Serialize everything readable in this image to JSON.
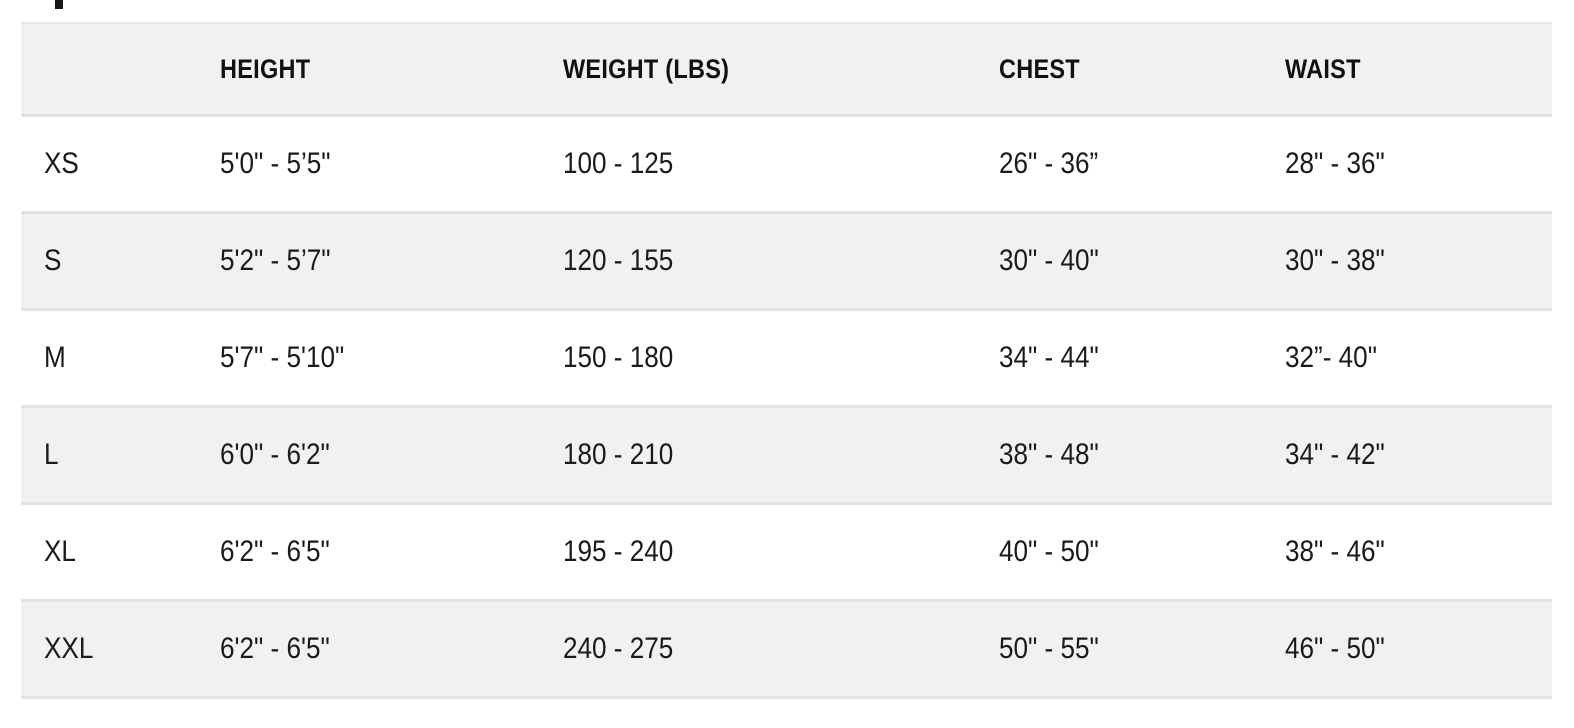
{
  "page": {
    "cropped_text_remnant": ""
  },
  "table": {
    "columns": {
      "size": "",
      "height": "HEIGHT",
      "weight": "WEIGHT (LBS)",
      "chest": "CHEST",
      "waist": "WAIST"
    },
    "rows": [
      {
        "size": "XS",
        "height": "5'0\" - 5’5\"",
        "weight": "100 - 125",
        "chest": "26\" - 36”",
        "waist": "28\" - 36\""
      },
      {
        "size": "S",
        "height": "5'2\" - 5’7\"",
        "weight": "120 - 155",
        "chest": "30\" - 40\"",
        "waist": "30\" - 38\""
      },
      {
        "size": "M",
        "height": "5'7\" - 5'10\"",
        "weight": "150 - 180",
        "chest": "34\" - 44\"",
        "waist": "32”- 40\""
      },
      {
        "size": "L",
        "height": "6'0\" - 6'2\"",
        "weight": "180 - 210",
        "chest": "38\" - 48\"",
        "waist": "34\" - 42\""
      },
      {
        "size": "XL",
        "height": "6'2\" - 6'5\"",
        "weight": "195 - 240",
        "chest": "40\" - 50\"",
        "waist": "38\" - 46\""
      },
      {
        "size": "XXL",
        "height": "6'2\" - 6'5\"",
        "weight": "240 - 275",
        "chest": "50\" - 55\"",
        "waist": "46\" - 50\""
      }
    ],
    "colors": {
      "stripe": "#f1f1f2",
      "border": "#e2e3e7",
      "header_text": "#111111",
      "body_text": "#1a1a1a"
    }
  }
}
